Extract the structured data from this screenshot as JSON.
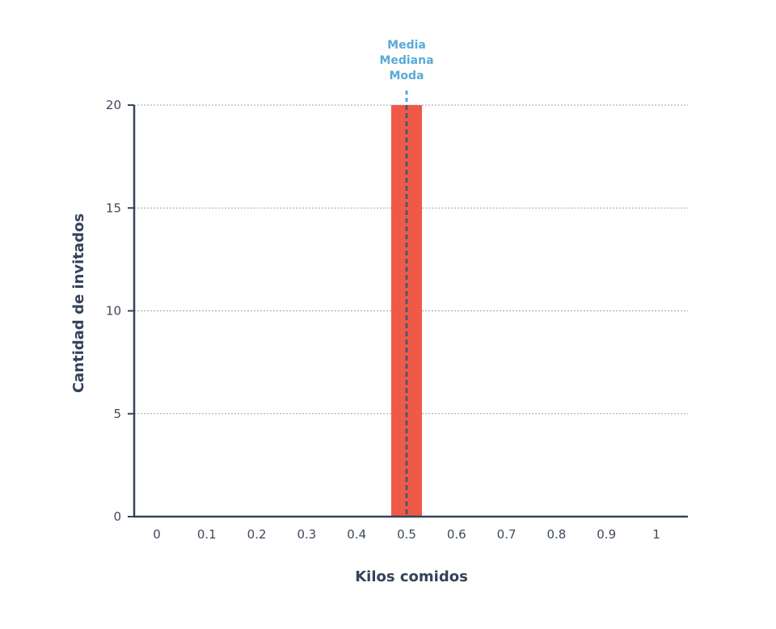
{
  "chart_data": {
    "type": "bar",
    "categories": [
      "0",
      "0.1",
      "0.2",
      "0.3",
      "0.4",
      "0.5",
      "0.6",
      "0.7",
      "0.8",
      "0.9",
      "1"
    ],
    "values": [
      0,
      0,
      0,
      0,
      0,
      20,
      0,
      0,
      0,
      0,
      0
    ],
    "xlabel": "Kilos comidos",
    "ylabel": "Cantidad de invitados",
    "ylim": [
      0,
      20
    ],
    "yticks": [
      "0",
      "5",
      "10",
      "15",
      "20"
    ],
    "grid": "horizontal-dotted",
    "bar_color": "#ef5a48",
    "axis_color": "#34435a",
    "reference_line": {
      "x": "0.5",
      "labels": [
        "Media",
        "Mediana",
        "Moda"
      ],
      "color": "#5aa9d8",
      "inner_color": "#4b5a75"
    }
  }
}
